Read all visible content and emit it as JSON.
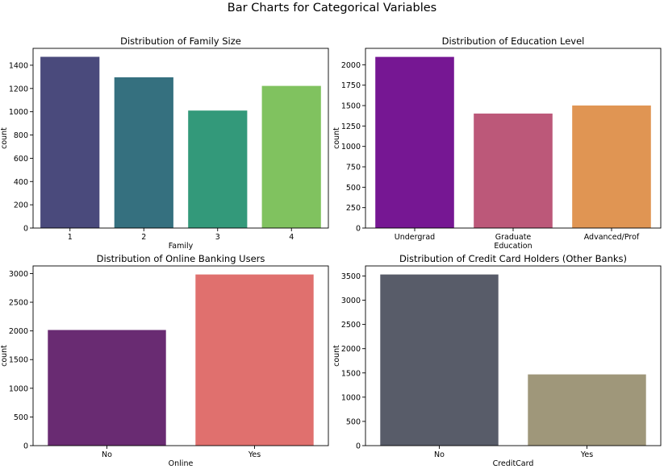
{
  "figure": {
    "suptitle": "Bar Charts for Categorical Variables"
  },
  "chart_data": [
    {
      "type": "bar",
      "title": "Distribution of Family Size",
      "xlabel": "Family",
      "ylabel": "count",
      "categories": [
        "1",
        "2",
        "3",
        "4"
      ],
      "values": [
        1472,
        1296,
        1010,
        1222
      ],
      "colors": [
        "#4a4a7c",
        "#35707f",
        "#33997a",
        "#80c25f"
      ],
      "ylim": [
        0,
        1545
      ],
      "yticks": [
        0,
        200,
        400,
        600,
        800,
        1000,
        1200,
        1400
      ],
      "bar_width": 0.8,
      "grid": false
    },
    {
      "type": "bar",
      "title": "Distribution of Education Level",
      "xlabel": "Education",
      "ylabel": "count",
      "categories": [
        "Undergrad",
        "Graduate",
        "Advanced/Prof"
      ],
      "values": [
        2096,
        1403,
        1501
      ],
      "colors": [
        "#761793",
        "#bc5879",
        "#e09553"
      ],
      "ylim": [
        0,
        2201
      ],
      "yticks": [
        0,
        250,
        500,
        750,
        1000,
        1250,
        1500,
        1750,
        2000
      ],
      "bar_width": 0.8,
      "grid": false
    },
    {
      "type": "bar",
      "title": "Distribution of Online Banking Users",
      "xlabel": "Online",
      "ylabel": "count",
      "categories": [
        "No",
        "Yes"
      ],
      "values": [
        2016,
        2984
      ],
      "colors": [
        "#692b72",
        "#e0706e"
      ],
      "ylim": [
        0,
        3133
      ],
      "yticks": [
        0,
        500,
        1000,
        1500,
        2000,
        2500,
        3000
      ],
      "bar_width": 0.8,
      "grid": false
    },
    {
      "type": "bar",
      "title": "Distribution of Credit Card Holders (Other Banks)",
      "xlabel": "CreditCard",
      "ylabel": "count",
      "categories": [
        "No",
        "Yes"
      ],
      "values": [
        3530,
        1470
      ],
      "colors": [
        "#585c69",
        "#9f977a"
      ],
      "ylim": [
        0,
        3707
      ],
      "yticks": [
        0,
        500,
        1000,
        1500,
        2000,
        2500,
        3000,
        3500
      ],
      "bar_width": 0.8,
      "grid": false
    }
  ]
}
